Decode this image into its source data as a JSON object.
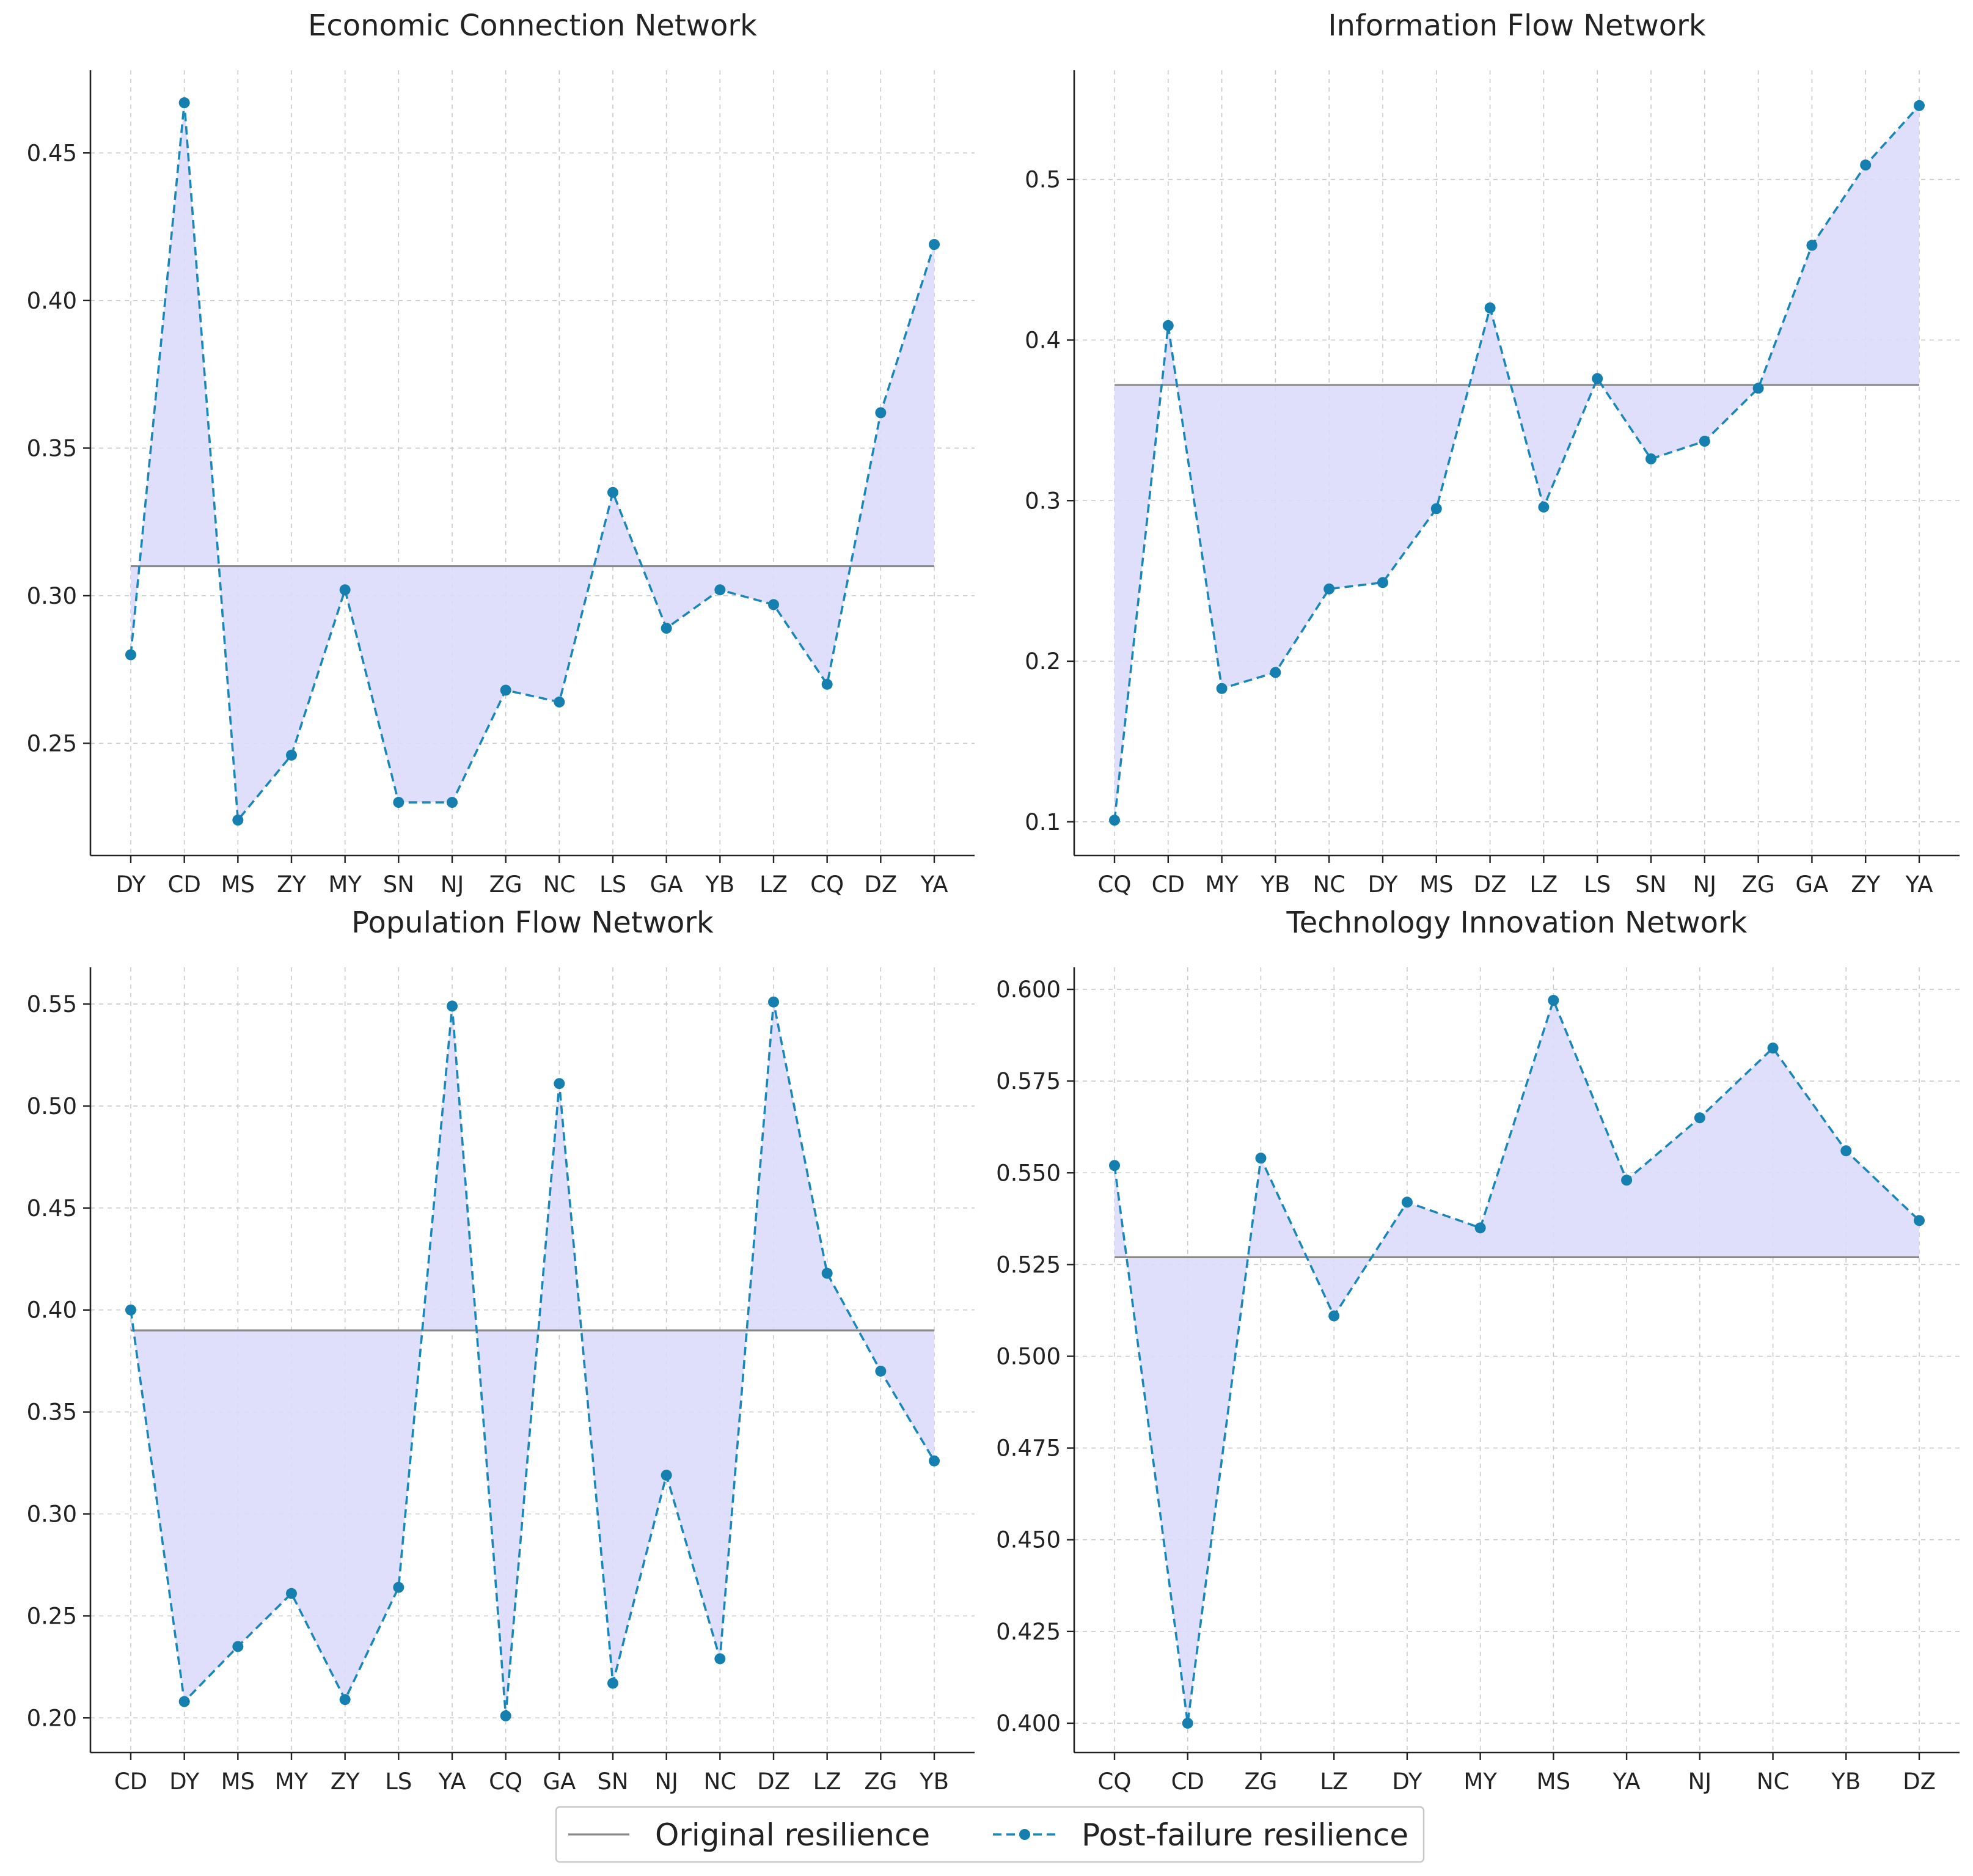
{
  "chart_data": [
    {
      "type": "line",
      "title": "Economic Connection Network",
      "categories": [
        "DY",
        "CD",
        "MS",
        "ZY",
        "MY",
        "SN",
        "NJ",
        "ZG",
        "NC",
        "LS",
        "GA",
        "YB",
        "LZ",
        "CQ",
        "DZ",
        "YA"
      ],
      "values": [
        0.28,
        0.467,
        0.224,
        0.246,
        0.302,
        0.23,
        0.23,
        0.268,
        0.264,
        0.335,
        0.289,
        0.302,
        0.297,
        0.27,
        0.362,
        0.419
      ],
      "baseline": 0.31,
      "ylim": [
        0.212,
        0.478
      ],
      "yticks": [
        0.25,
        0.3,
        0.35,
        0.4,
        0.45
      ],
      "ytick_labels": [
        "0.25",
        "0.30",
        "0.35",
        "0.40",
        "0.45"
      ]
    },
    {
      "type": "line",
      "title": "Information Flow Network",
      "categories": [
        "CQ",
        "CD",
        "MY",
        "YB",
        "NC",
        "DY",
        "MS",
        "DZ",
        "LZ",
        "LS",
        "SN",
        "NJ",
        "ZG",
        "GA",
        "ZY",
        "YA"
      ],
      "values": [
        0.101,
        0.409,
        0.183,
        0.193,
        0.245,
        0.249,
        0.295,
        0.42,
        0.296,
        0.376,
        0.326,
        0.337,
        0.37,
        0.459,
        0.509,
        0.546
      ],
      "baseline": 0.372,
      "ylim": [
        0.079,
        0.568
      ],
      "yticks": [
        0.1,
        0.2,
        0.3,
        0.4,
        0.5
      ],
      "ytick_labels": [
        "0.1",
        "0.2",
        "0.3",
        "0.4",
        "0.5"
      ]
    },
    {
      "type": "line",
      "title": "Population Flow Network",
      "categories": [
        "CD",
        "DY",
        "MS",
        "MY",
        "ZY",
        "LS",
        "YA",
        "CQ",
        "GA",
        "SN",
        "NJ",
        "NC",
        "DZ",
        "LZ",
        "ZG",
        "YB"
      ],
      "values": [
        0.4,
        0.208,
        0.235,
        0.261,
        0.209,
        0.264,
        0.549,
        0.201,
        0.511,
        0.217,
        0.319,
        0.229,
        0.551,
        0.418,
        0.37,
        0.326
      ],
      "baseline": 0.39,
      "ylim": [
        0.183,
        0.568
      ],
      "yticks": [
        0.2,
        0.25,
        0.3,
        0.35,
        0.4,
        0.45,
        0.5,
        0.55
      ],
      "ytick_labels": [
        "0.20",
        "0.25",
        "0.30",
        "0.35",
        "0.40",
        "0.45",
        "0.50",
        "0.55"
      ]
    },
    {
      "type": "line",
      "title": "Technology Innovation Network",
      "categories": [
        "CQ",
        "CD",
        "ZG",
        "LZ",
        "DY",
        "MY",
        "MS",
        "YA",
        "NJ",
        "NC",
        "YB",
        "DZ"
      ],
      "values": [
        0.552,
        0.4,
        0.554,
        0.511,
        0.542,
        0.535,
        0.597,
        0.548,
        0.565,
        0.584,
        0.556,
        0.537
      ],
      "baseline": 0.527,
      "ylim": [
        0.392,
        0.606
      ],
      "yticks": [
        0.4,
        0.425,
        0.45,
        0.475,
        0.5,
        0.525,
        0.55,
        0.575,
        0.6
      ],
      "ytick_labels": [
        "0.400",
        "0.425",
        "0.450",
        "0.475",
        "0.500",
        "0.525",
        "0.550",
        "0.575",
        "0.600"
      ]
    }
  ],
  "legend": {
    "items": [
      {
        "label": "Original resilience",
        "color": "#8a8a8a"
      },
      {
        "label": "Post-failure resilience",
        "color": "#1a87b8"
      }
    ]
  },
  "colors": {
    "series": "#1a87b8",
    "baseline": "#8a8a8a",
    "fill": "#dcdcfc"
  }
}
